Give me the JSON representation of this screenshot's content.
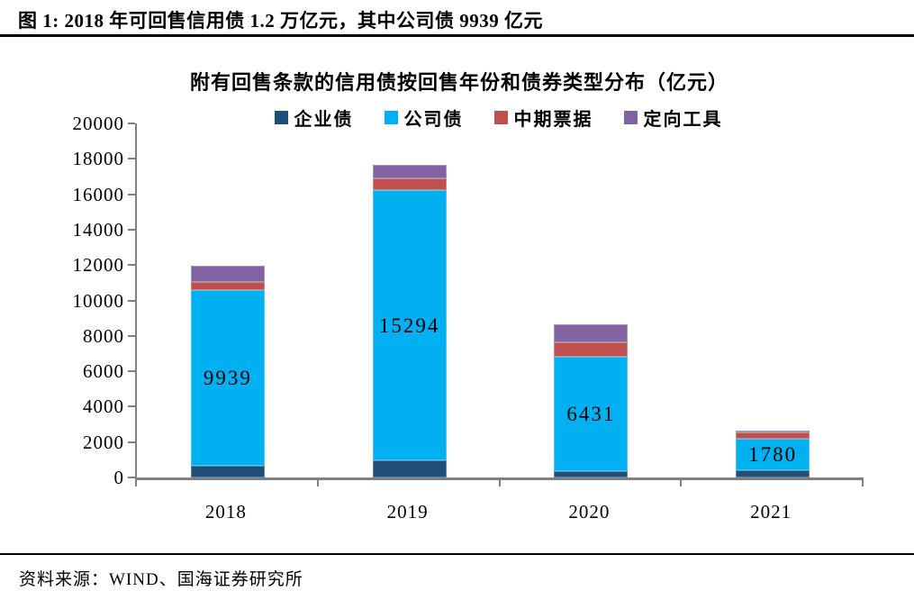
{
  "page": {
    "header_title": "图 1:  2018 年可回售信用债 1.2 万亿元，其中公司债 9939 亿元",
    "source_note": "资料来源：WIND、国海证券研究所"
  },
  "chart_data": {
    "type": "bar",
    "stacked": true,
    "title": "附有回售条款的信用债按回售年份和债券类型分布（亿元）",
    "categories": [
      "2018",
      "2019",
      "2020",
      "2021"
    ],
    "series": [
      {
        "name": "企业债",
        "color": "#1F4E79",
        "values": [
          650,
          950,
          380,
          420
        ]
      },
      {
        "name": "公司债",
        "color": "#00B0F0",
        "values": [
          9939,
          15294,
          6431,
          1780
        ],
        "data_labels": [
          "9939",
          "15294",
          "6431",
          "1780"
        ]
      },
      {
        "name": "中期票据",
        "color": "#C0504D",
        "values": [
          460,
          660,
          800,
          340
        ]
      },
      {
        "name": "定向工具",
        "color": "#8064A2",
        "values": [
          900,
          750,
          1030,
          110
        ]
      }
    ],
    "totals_approx": [
      11949,
      17654,
      8641,
      2650
    ],
    "ylim": [
      0,
      20000
    ],
    "ytick_step": 2000,
    "ytick_labels": [
      "0",
      "2000",
      "4000",
      "6000",
      "8000",
      "10000",
      "12000",
      "14000",
      "16000",
      "18000",
      "20000"
    ],
    "grid": false,
    "legend_position": "top",
    "axis_color": "#808080"
  }
}
